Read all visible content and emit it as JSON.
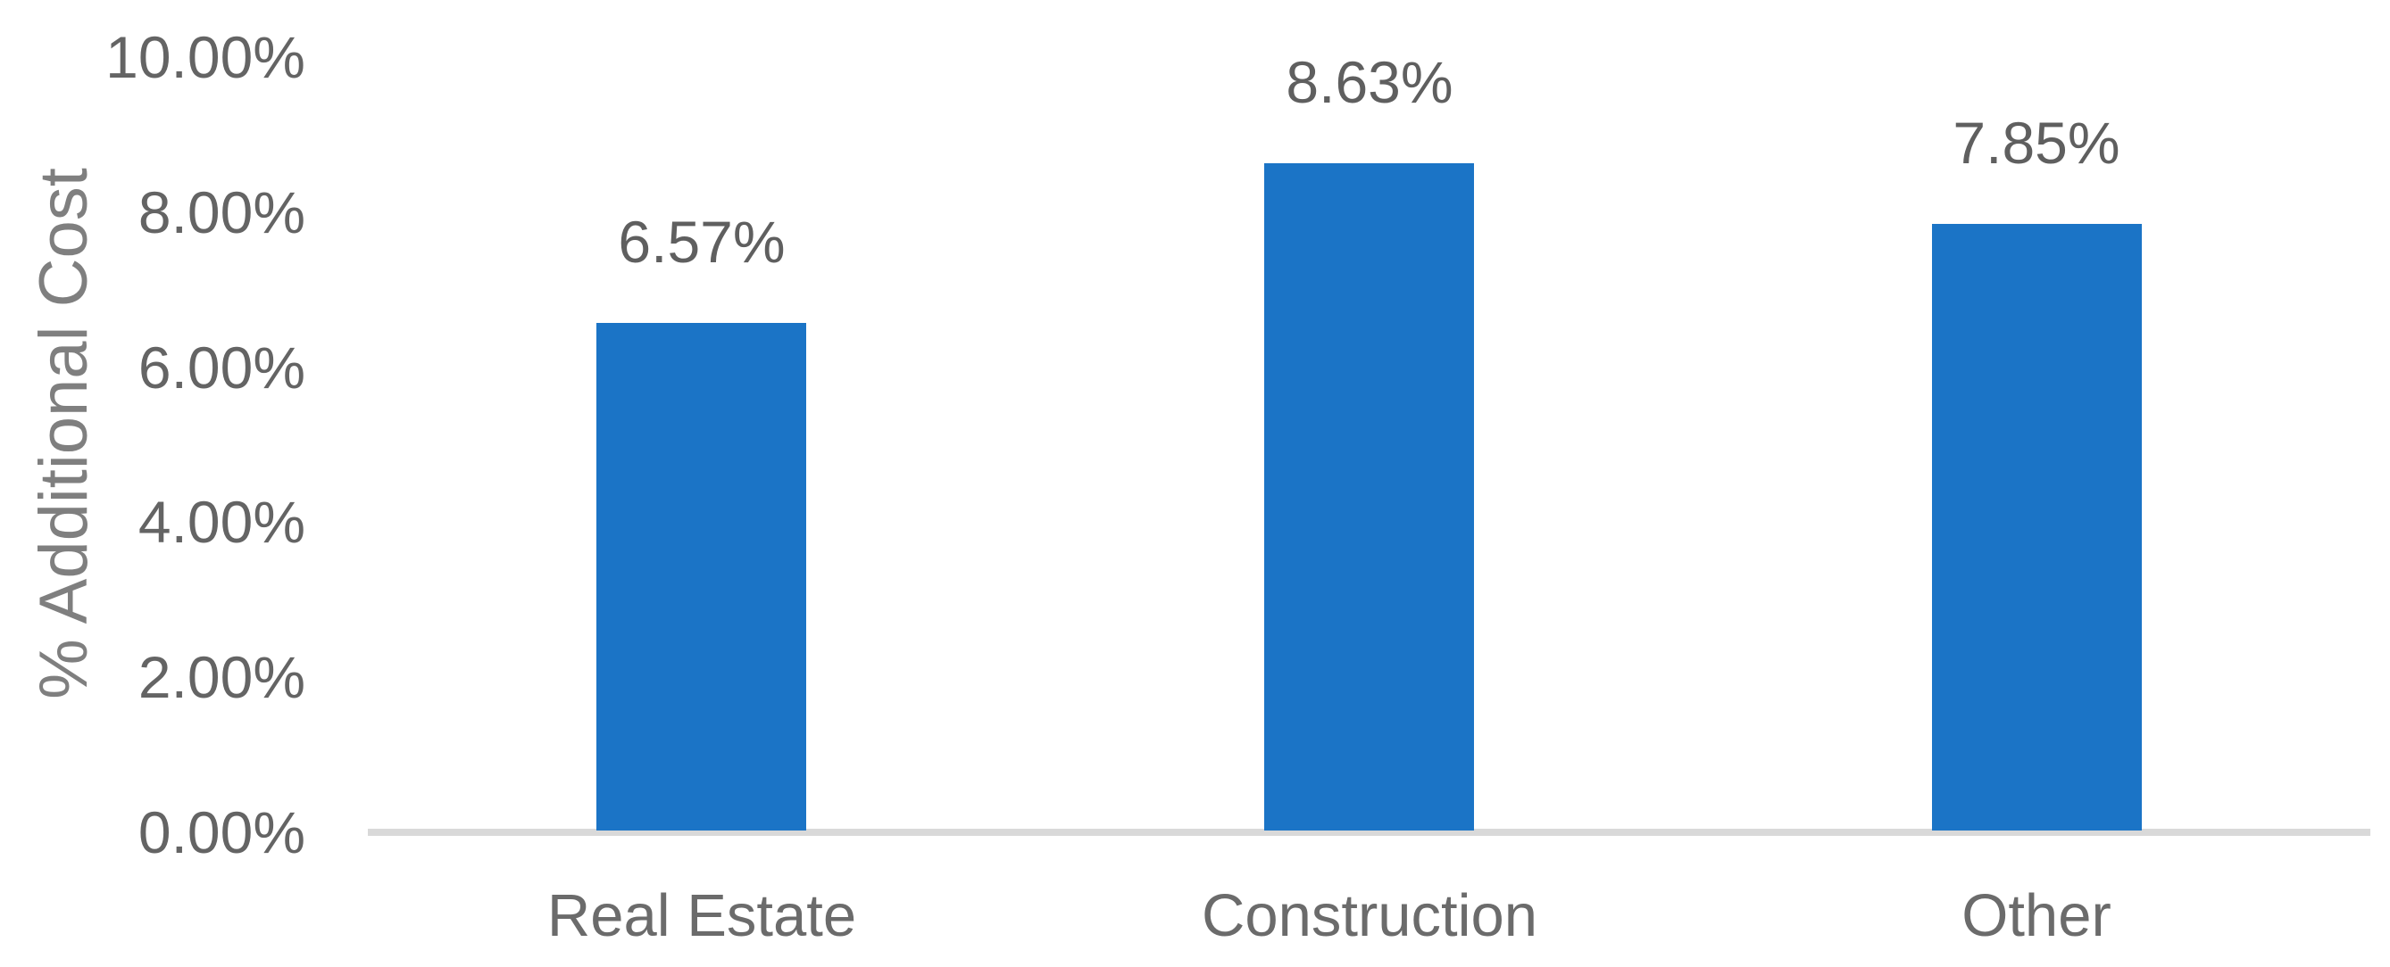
{
  "chart_data": {
    "type": "bar",
    "title": "",
    "xlabel": "",
    "ylabel": "% Additional Cost",
    "categories": [
      "Real Estate",
      "Construction",
      "Other"
    ],
    "values": [
      6.57,
      8.63,
      7.85
    ],
    "data_labels": [
      "6.57%",
      "8.63%",
      "7.85%"
    ],
    "ylim": [
      0,
      10
    ],
    "ytick_values": [
      0,
      2,
      4,
      6,
      8,
      10
    ],
    "ytick_labels": [
      "0.00%",
      "2.00%",
      "4.00%",
      "6.00%",
      "8.00%",
      "10.00%"
    ],
    "grid": "off",
    "legend": "none",
    "colors": {
      "bar": "#1B74C6",
      "axis_line": "#D9D9D9",
      "tick_label": "#646464",
      "data_label": "#5F5F5F",
      "category_label": "#6B6B6B",
      "axis_title": "#7F7F7F",
      "background": "#FFFFFF"
    }
  }
}
